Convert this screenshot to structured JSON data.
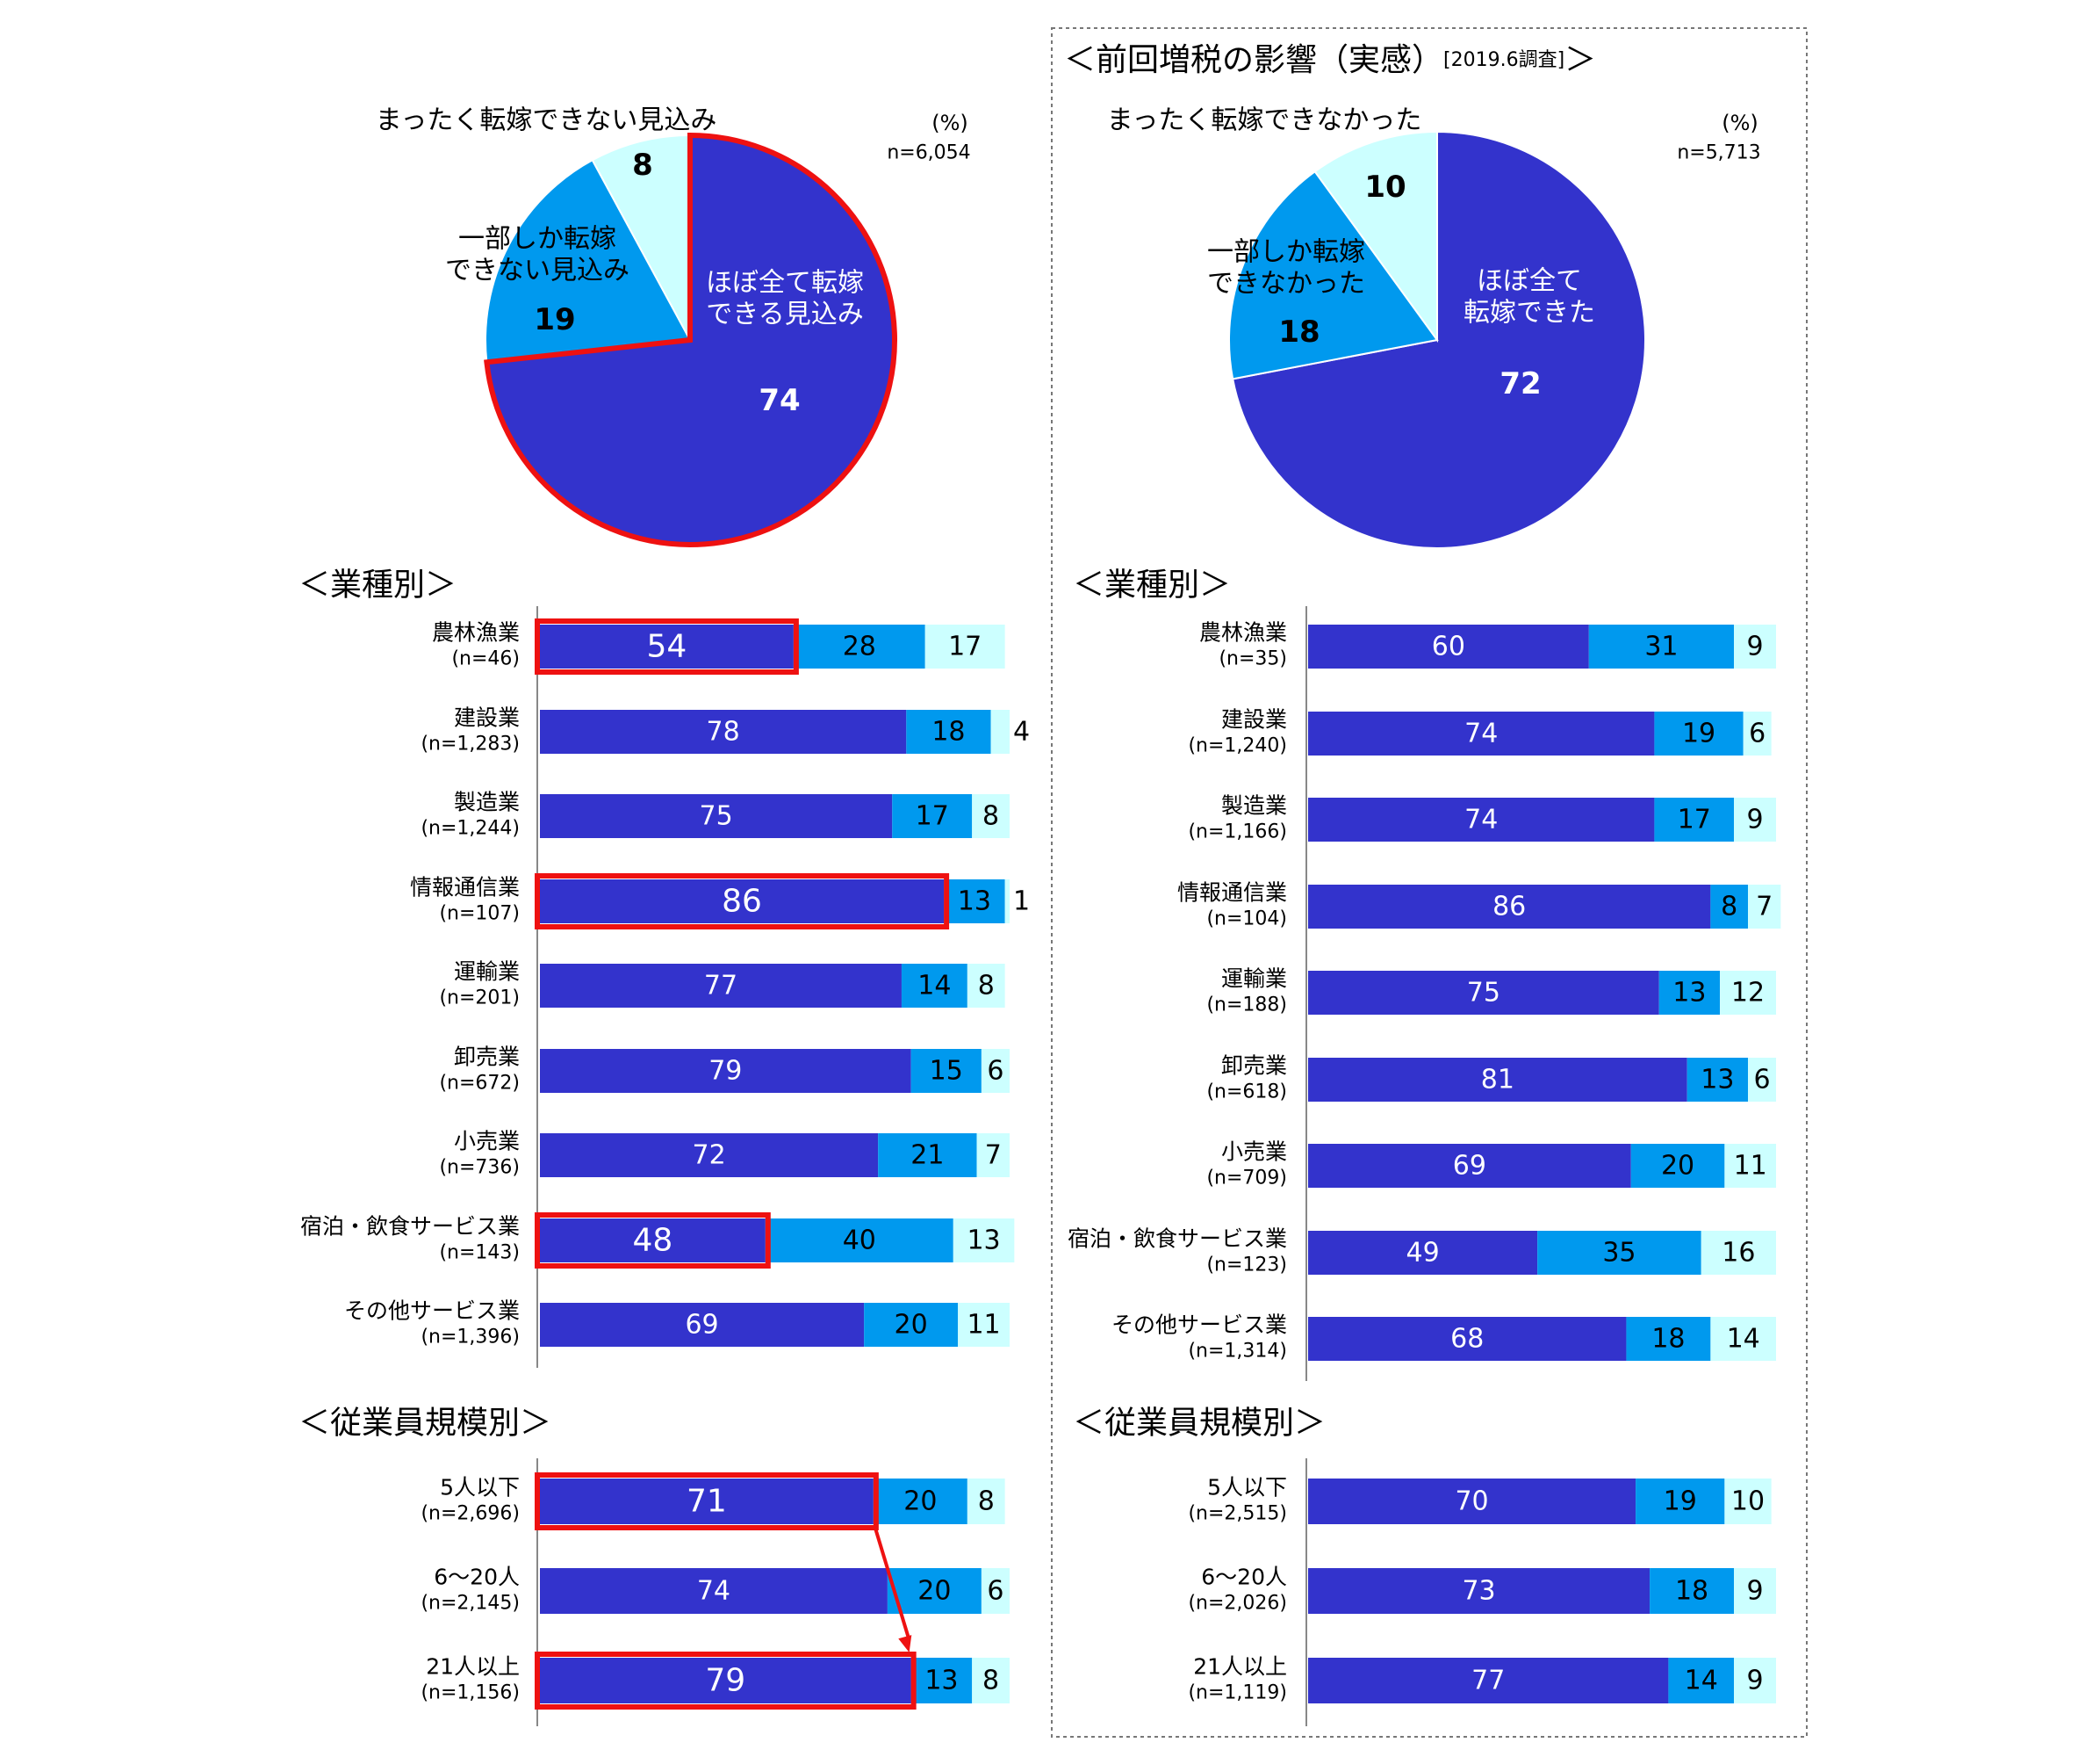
{
  "colors": {
    "dark": "#3333cc",
    "mid": "#0099ee",
    "light": "#ccffff",
    "highlight": "#ee1111"
  },
  "chart_data": [
    {
      "type": "pie",
      "title": "",
      "unit": "(%)",
      "n": "n=6,054",
      "slices": [
        {
          "label": "ほぼ全て転嫁\nできる見込み",
          "value": 74,
          "color": "#3333cc"
        },
        {
          "label": "一部しか転嫁\nできない見込み",
          "value": 19,
          "color": "#0099ee"
        },
        {
          "label": "まったく転嫁できない見込み",
          "value": 8,
          "color": "#ccffff"
        }
      ],
      "highlight": [
        0
      ]
    },
    {
      "type": "pie",
      "title": "＜前回増税の影響（実感）",
      "title_note": "[2019.6調査]",
      "title_end": "＞",
      "unit": "(%)",
      "n": "n=5,713",
      "slices": [
        {
          "label": "ほぼ全て\n転嫁できた",
          "value": 72,
          "color": "#3333cc"
        },
        {
          "label": "一部しか転嫁\nできなかった",
          "value": 18,
          "color": "#0099ee"
        },
        {
          "label": "まったく転嫁できなかった",
          "value": 10,
          "color": "#ccffff"
        }
      ]
    },
    {
      "type": "bar",
      "orientation": "horizontal",
      "stacked": true,
      "title": "＜業種別＞",
      "categories": [
        {
          "name": "農林漁業",
          "n": "(n=46)"
        },
        {
          "name": "建設業",
          "n": "(n=1,283)"
        },
        {
          "name": "製造業",
          "n": "(n=1,244)"
        },
        {
          "name": "情報通信業",
          "n": "(n=107)"
        },
        {
          "name": "運輸業",
          "n": "(n=201)"
        },
        {
          "name": "卸売業",
          "n": "(n=672)"
        },
        {
          "name": "小売業",
          "n": "(n=736)"
        },
        {
          "name": "宿泊・飲食サービス業",
          "n": "(n=143)"
        },
        {
          "name": "その他サービス業",
          "n": "(n=1,396)"
        }
      ],
      "series": [
        {
          "values": [
            54,
            78,
            75,
            86,
            77,
            79,
            72,
            48,
            69
          ]
        },
        {
          "values": [
            28,
            18,
            17,
            13,
            14,
            15,
            21,
            40,
            20
          ]
        },
        {
          "values": [
            17,
            4,
            8,
            1,
            8,
            6,
            7,
            13,
            11
          ]
        }
      ],
      "highlight": [
        0,
        3,
        7
      ]
    },
    {
      "type": "bar",
      "orientation": "horizontal",
      "stacked": true,
      "title": "＜業種別＞",
      "categories": [
        {
          "name": "農林漁業",
          "n": "(n=35)"
        },
        {
          "name": "建設業",
          "n": "(n=1,240)"
        },
        {
          "name": "製造業",
          "n": "(n=1,166)"
        },
        {
          "name": "情報通信業",
          "n": "(n=104)"
        },
        {
          "name": "運輸業",
          "n": "(n=188)"
        },
        {
          "name": "卸売業",
          "n": "(n=618)"
        },
        {
          "name": "小売業",
          "n": "(n=709)"
        },
        {
          "name": "宿泊・飲食サービス業",
          "n": "(n=123)"
        },
        {
          "name": "その他サービス業",
          "n": "(n=1,314)"
        }
      ],
      "series": [
        {
          "values": [
            60,
            74,
            74,
            86,
            75,
            81,
            69,
            49,
            68
          ]
        },
        {
          "values": [
            31,
            19,
            17,
            8,
            13,
            13,
            20,
            35,
            18
          ]
        },
        {
          "values": [
            9,
            6,
            9,
            7,
            12,
            6,
            11,
            16,
            14
          ]
        }
      ]
    },
    {
      "type": "bar",
      "orientation": "horizontal",
      "stacked": true,
      "title": "＜従業員規模別＞",
      "categories": [
        {
          "name": "5人以下",
          "n": "(n=2,696)"
        },
        {
          "name": "6～20人",
          "n": "(n=2,145)"
        },
        {
          "name": "21人以上",
          "n": "(n=1,156)"
        }
      ],
      "series": [
        {
          "values": [
            71,
            74,
            79
          ]
        },
        {
          "values": [
            20,
            20,
            13
          ]
        },
        {
          "values": [
            8,
            6,
            8
          ]
        }
      ],
      "highlight": [
        0,
        2
      ],
      "arrow": {
        "from": 0,
        "to": 2
      }
    },
    {
      "type": "bar",
      "orientation": "horizontal",
      "stacked": true,
      "title": "＜従業員規模別＞",
      "categories": [
        {
          "name": "5人以下",
          "n": "(n=2,515)"
        },
        {
          "name": "6～20人",
          "n": "(n=2,026)"
        },
        {
          "name": "21人以上",
          "n": "(n=1,119)"
        }
      ],
      "series": [
        {
          "values": [
            70,
            73,
            77
          ]
        },
        {
          "values": [
            19,
            18,
            14
          ]
        },
        {
          "values": [
            10,
            9,
            9
          ]
        }
      ]
    }
  ]
}
